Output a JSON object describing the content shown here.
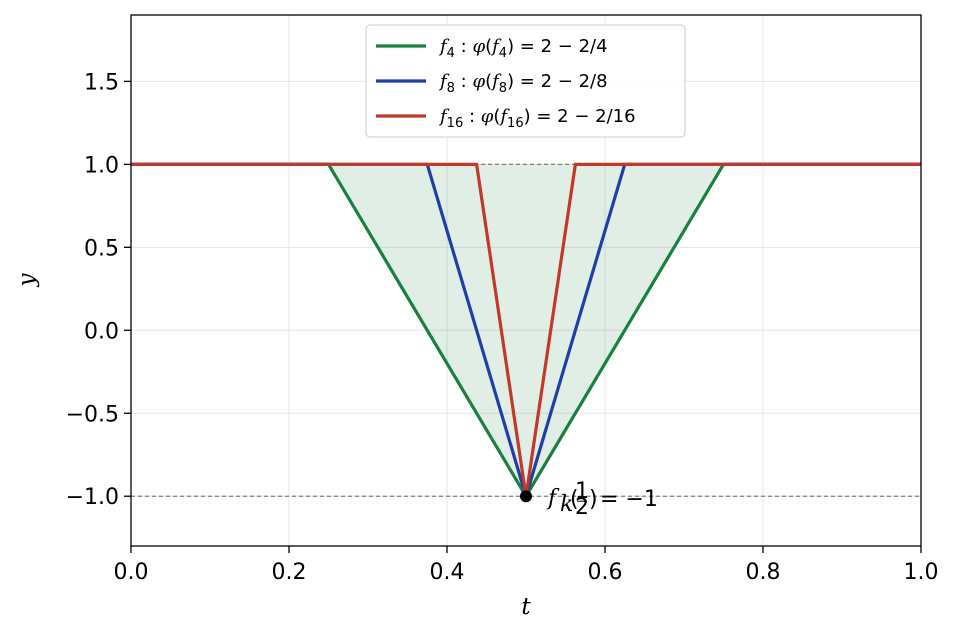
{
  "chart_data": {
    "type": "line",
    "xlabel": "t",
    "ylabel": "y",
    "xlim": [
      0.0,
      1.0
    ],
    "ylim": [
      -1.3,
      1.9
    ],
    "grid": true,
    "legend_position": "top-center",
    "x_ticks": [
      0.0,
      0.2,
      0.4,
      0.6,
      0.8,
      1.0
    ],
    "y_ticks": [
      -1.0,
      -0.5,
      0.0,
      0.5,
      1.0,
      1.5
    ],
    "x_tick_labels": [
      "0.0",
      "0.2",
      "0.4",
      "0.6",
      "0.8",
      "1.0"
    ],
    "y_tick_labels": [
      "−1.0",
      "−0.5",
      "0.0",
      "0.5",
      "1.0",
      "1.5"
    ],
    "reference_lines": [
      {
        "y": 1.0,
        "style": "dashed",
        "color": "#808080"
      },
      {
        "y": -1.0,
        "style": "dashed",
        "color": "#808080"
      }
    ],
    "shaded_region": {
      "color": "#1a7f3f",
      "opacity": 0.13,
      "upper": 1.0,
      "lower_x": [
        0.25,
        0.5,
        0.75
      ],
      "lower_y": [
        1.0,
        -1.0,
        1.0
      ]
    },
    "series": [
      {
        "id": "f4",
        "legend": {
          "f_sub": "4",
          "phi_sub": "4",
          "eq": "2 − 2/4"
        },
        "color": "#1a7f3f",
        "x": [
          0.0,
          0.25,
          0.5,
          0.75,
          1.0
        ],
        "y": [
          1.0,
          1.0,
          -1.0,
          1.0,
          1.0
        ]
      },
      {
        "id": "f8",
        "legend": {
          "f_sub": "8",
          "phi_sub": "8",
          "eq": "2 − 2/8"
        },
        "color": "#1f3ea6",
        "x": [
          0.0,
          0.375,
          0.5,
          0.625,
          1.0
        ],
        "y": [
          1.0,
          1.0,
          -1.0,
          1.0,
          1.0
        ]
      },
      {
        "id": "f16",
        "legend": {
          "f_sub": "16",
          "phi_sub": "16",
          "eq": "2 − 2/16"
        },
        "color": "#c0392b",
        "x": [
          0.0,
          0.4375,
          0.5,
          0.5625,
          1.0
        ],
        "y": [
          1.0,
          1.0,
          -1.0,
          1.0,
          1.0
        ]
      }
    ],
    "marker": {
      "x": 0.5,
      "y": -1.0,
      "color": "#000000"
    },
    "annotation": {
      "f": "f",
      "sub": "k",
      "num": "1",
      "den": "2",
      "rhs": "= −1"
    }
  }
}
